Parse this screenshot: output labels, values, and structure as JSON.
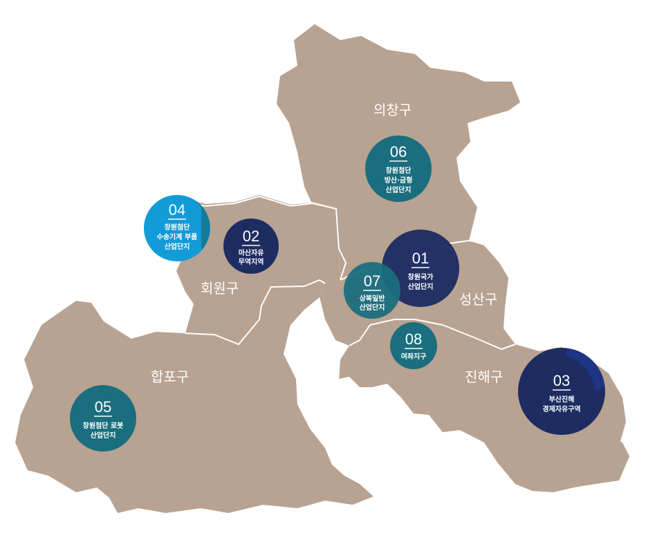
{
  "districts": {
    "uichang": "의창구",
    "seongsan": "성산구",
    "hoewon": "회원구",
    "happo": "합포구",
    "jinhae": "진해구"
  },
  "colors": {
    "land": "#b8a291",
    "border": "#ffffff",
    "teal": "#1a6e7e",
    "navy": "#1d2d62",
    "sky": "#139bd8"
  },
  "zones": [
    {
      "num": "01",
      "lines": [
        "창원국가",
        "산업단지"
      ],
      "color": "navy"
    },
    {
      "num": "02",
      "lines": [
        "마산자유",
        "무역지역"
      ],
      "color": "navy"
    },
    {
      "num": "03",
      "lines": [
        "부산진해",
        "경제자유구역"
      ],
      "color": "navy"
    },
    {
      "num": "04",
      "lines": [
        "창원첨단",
        "수송기계 부품",
        "산업단지"
      ],
      "color": "sky"
    },
    {
      "num": "05",
      "lines": [
        "창원첨단 로봇",
        "산업단지"
      ],
      "color": "teal"
    },
    {
      "num": "06",
      "lines": [
        "창원첨단",
        "방산·금형",
        "산업단지"
      ],
      "color": "teal"
    },
    {
      "num": "07",
      "lines": [
        "상복일반",
        "산업단지"
      ],
      "color": "teal"
    },
    {
      "num": "08",
      "lines": [
        "여좌지구"
      ],
      "color": "teal"
    }
  ]
}
